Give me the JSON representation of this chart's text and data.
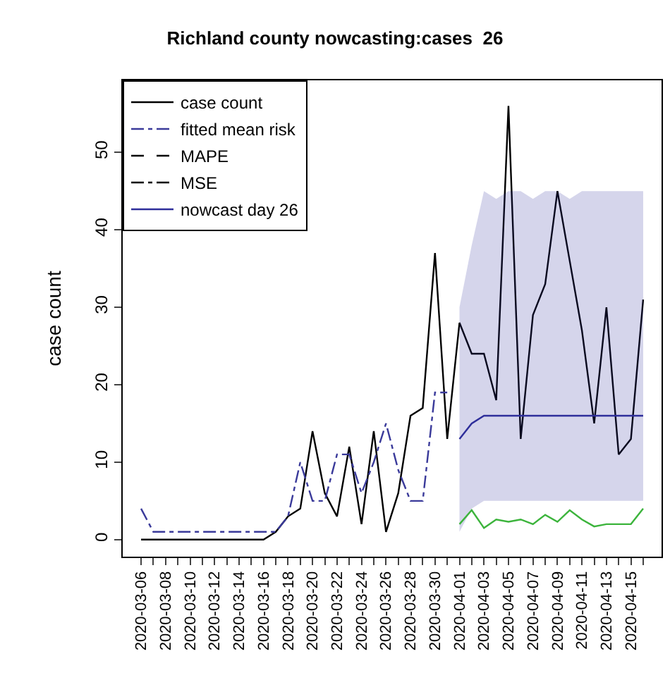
{
  "chart_data": {
    "type": "line",
    "title": "Richland county nowcasting:cases  26",
    "ylabel": "case count",
    "x": [
      "2020-03-06",
      "2020-03-07",
      "2020-03-08",
      "2020-03-09",
      "2020-03-10",
      "2020-03-11",
      "2020-03-12",
      "2020-03-13",
      "2020-03-14",
      "2020-03-15",
      "2020-03-16",
      "2020-03-17",
      "2020-03-18",
      "2020-03-19",
      "2020-03-20",
      "2020-03-21",
      "2020-03-22",
      "2020-03-23",
      "2020-03-24",
      "2020-03-25",
      "2020-03-26",
      "2020-03-27",
      "2020-03-28",
      "2020-03-29",
      "2020-03-30",
      "2020-03-31",
      "2020-04-01",
      "2020-04-02",
      "2020-04-03",
      "2020-04-04",
      "2020-04-05",
      "2020-04-06",
      "2020-04-07",
      "2020-04-08",
      "2020-04-09",
      "2020-04-10",
      "2020-04-11",
      "2020-04-12",
      "2020-04-13",
      "2020-04-14",
      "2020-04-15",
      "2020-04-16"
    ],
    "series": [
      {
        "name": "case count",
        "color": "#000000",
        "line_style": "solid",
        "values": [
          0,
          0,
          0,
          0,
          0,
          0,
          0,
          0,
          0,
          0,
          0,
          1,
          3,
          4,
          14,
          6,
          3,
          12,
          2,
          14,
          1,
          6,
          16,
          17,
          37,
          13,
          28,
          24,
          24,
          18,
          56,
          13,
          29,
          33,
          45,
          36,
          27,
          15,
          30,
          11,
          13,
          31
        ]
      },
      {
        "name": "fitted mean risk",
        "color": "#3a3a9a",
        "line_style": "dashdot",
        "values": [
          4,
          1,
          1,
          1,
          1,
          1,
          1,
          1,
          1,
          1,
          1,
          1,
          3,
          10,
          5,
          5,
          11,
          11,
          6,
          10,
          15,
          9,
          5,
          5,
          19,
          19,
          null,
          null,
          null,
          null,
          null,
          null,
          null,
          null,
          null,
          null,
          null,
          null,
          null,
          null,
          null,
          null
        ]
      },
      {
        "name": "MAPE",
        "color": "#000000",
        "line_style": "dashed",
        "values": [
          null,
          null,
          null,
          null,
          null,
          null,
          null,
          null,
          null,
          null,
          null,
          null,
          null,
          null,
          null,
          null,
          null,
          null,
          null,
          null,
          null,
          null,
          null,
          null,
          null,
          null,
          null,
          null,
          null,
          null,
          null,
          null,
          null,
          null,
          null,
          null,
          null,
          null,
          null,
          null,
          null,
          null
        ]
      },
      {
        "name": "MSE",
        "color": "#000000",
        "line_style": "dashdot",
        "values": [
          null,
          null,
          null,
          null,
          null,
          null,
          null,
          null,
          null,
          null,
          null,
          null,
          null,
          null,
          null,
          null,
          null,
          null,
          null,
          null,
          null,
          null,
          null,
          null,
          null,
          null,
          null,
          null,
          null,
          null,
          null,
          null,
          null,
          null,
          null,
          null,
          null,
          null,
          null,
          null,
          null,
          null
        ]
      },
      {
        "name": "nowcast day 26",
        "color": "#2e2e9a",
        "line_style": "solid",
        "values": [
          null,
          null,
          null,
          null,
          null,
          null,
          null,
          null,
          null,
          null,
          null,
          null,
          null,
          null,
          null,
          null,
          null,
          null,
          null,
          null,
          null,
          null,
          null,
          null,
          null,
          null,
          13,
          15,
          16,
          16,
          16,
          16,
          16,
          16,
          16,
          16,
          16,
          16,
          16,
          16,
          16,
          16
        ],
        "lower": [
          null,
          null,
          null,
          null,
          null,
          null,
          null,
          null,
          null,
          null,
          null,
          null,
          null,
          null,
          null,
          null,
          null,
          null,
          null,
          null,
          null,
          null,
          null,
          null,
          null,
          null,
          1,
          4,
          5,
          5,
          5,
          5,
          5,
          5,
          5,
          5,
          5,
          5,
          5,
          5,
          5,
          5
        ],
        "upper": [
          null,
          null,
          null,
          null,
          null,
          null,
          null,
          null,
          null,
          null,
          null,
          null,
          null,
          null,
          null,
          null,
          null,
          null,
          null,
          null,
          null,
          null,
          null,
          null,
          null,
          null,
          30,
          38,
          45,
          44,
          45,
          45,
          44,
          45,
          45,
          44,
          45,
          45,
          45,
          45,
          45,
          45
        ]
      },
      {
        "color": "#3cb43c",
        "line_style": "solid",
        "values": [
          null,
          null,
          null,
          null,
          null,
          null,
          null,
          null,
          null,
          null,
          null,
          null,
          null,
          null,
          null,
          null,
          null,
          null,
          null,
          null,
          null,
          null,
          null,
          null,
          null,
          null,
          2,
          3.8,
          1.5,
          2.6,
          2.3,
          2.6,
          2,
          3.2,
          2.3,
          3.8,
          2.6,
          1.7,
          2,
          2,
          2,
          4
        ]
      }
    ],
    "xlim": [
      "2020-03-04T12:00",
      "2020-04-17T12:00"
    ],
    "xticks": [
      {
        "value": "2020-03-06",
        "label": "2020-03-06"
      },
      {
        "value": "2020-03-07",
        "label": null
      },
      {
        "value": "2020-03-08",
        "label": "2020-03-08"
      },
      {
        "value": "2020-03-09",
        "label": null
      },
      {
        "value": "2020-03-10",
        "label": "2020-03-10"
      },
      {
        "value": "2020-03-11",
        "label": null
      },
      {
        "value": "2020-03-12",
        "label": "2020-03-12"
      },
      {
        "value": "2020-03-13",
        "label": null
      },
      {
        "value": "2020-03-14",
        "label": "2020-03-14"
      },
      {
        "value": "2020-03-15",
        "label": null
      },
      {
        "value": "2020-03-16",
        "label": "2020-03-16"
      },
      {
        "value": "2020-03-17",
        "label": null
      },
      {
        "value": "2020-03-18",
        "label": "2020-03-18"
      },
      {
        "value": "2020-03-19",
        "label": null
      },
      {
        "value": "2020-03-20",
        "label": "2020-03-20"
      },
      {
        "value": "2020-03-21",
        "label": null
      },
      {
        "value": "2020-03-22",
        "label": "2020-03-22"
      },
      {
        "value": "2020-03-23",
        "label": null
      },
      {
        "value": "2020-03-24",
        "label": "2020-03-24"
      },
      {
        "value": "2020-03-25",
        "label": null
      },
      {
        "value": "2020-03-26",
        "label": "2020-03-26"
      },
      {
        "value": "2020-03-27",
        "label": null
      },
      {
        "value": "2020-03-28",
        "label": "2020-03-28"
      },
      {
        "value": "2020-03-29",
        "label": null
      },
      {
        "value": "2020-03-30",
        "label": "2020-03-30"
      },
      {
        "value": "2020-03-31",
        "label": null
      },
      {
        "value": "2020-04-01",
        "label": "2020-04-01"
      },
      {
        "value": "2020-04-02",
        "label": null
      },
      {
        "value": "2020-04-03",
        "label": "2020-04-03"
      },
      {
        "value": "2020-04-04",
        "label": null
      },
      {
        "value": "2020-04-05",
        "label": "2020-04-05"
      },
      {
        "value": "2020-04-06",
        "label": null
      },
      {
        "value": "2020-04-07",
        "label": "2020-04-07"
      },
      {
        "value": "2020-04-08",
        "label": null
      },
      {
        "value": "2020-04-09",
        "label": "2020-04-09"
      },
      {
        "value": "2020-04-10",
        "label": null
      },
      {
        "value": "2020-04-11",
        "label": "2020-04-11"
      },
      {
        "value": "2020-04-12",
        "label": null
      },
      {
        "value": "2020-04-13",
        "label": "2020-04-13"
      },
      {
        "value": "2020-04-14",
        "label": null
      },
      {
        "value": "2020-04-15",
        "label": "2020-04-15"
      },
      {
        "value": "2020-04-16",
        "label": null
      }
    ],
    "ylim": [
      -2.2,
      59.3
    ],
    "yticks": [
      0,
      10,
      20,
      30,
      40,
      50
    ],
    "legend": "top left",
    "marker": "none"
  }
}
